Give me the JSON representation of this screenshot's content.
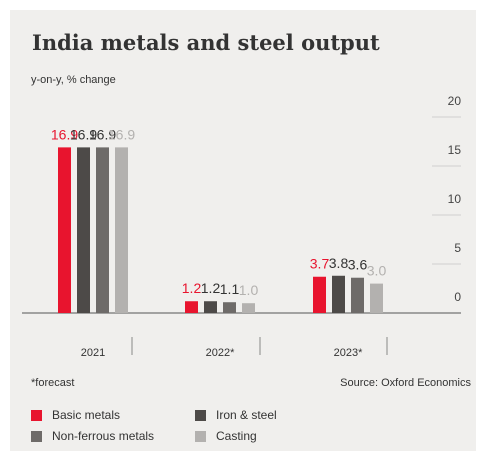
{
  "title": "India metals and steel output",
  "subtitle": "y-on-y, % change",
  "footnote": "*forecast",
  "source": "Source: Oxford Economics",
  "colors": {
    "background": "#f0efed",
    "axis": "#555555",
    "grid": "#cfcfcf",
    "text": "#333333",
    "tick_text": "#444444"
  },
  "chart_data": {
    "type": "bar",
    "title": "India metals and steel output",
    "subtitle": "y-on-y, % change",
    "categories": [
      "2021",
      "2022*",
      "2023*"
    ],
    "ylim": [
      0,
      20
    ],
    "yticks": [
      0,
      5,
      10,
      15,
      20
    ],
    "y_axis_position": "right",
    "grid": true,
    "legend_position": "bottom",
    "series": [
      {
        "name": "Basic metals",
        "color": "#e8142e",
        "values": [
          16.9,
          1.2,
          3.7
        ],
        "labels": [
          "16.9",
          "1.2",
          "3.7"
        ]
      },
      {
        "name": "Iron & steel",
        "color": "#4d4a48",
        "values": [
          16.9,
          1.2,
          3.8
        ],
        "labels": [
          "16.9",
          "1.2",
          "3.8"
        ]
      },
      {
        "name": "Non-ferrous metals",
        "color": "#6e6b69",
        "values": [
          16.9,
          1.1,
          3.6
        ],
        "labels": [
          "16.9",
          "1.1",
          "3.6"
        ]
      },
      {
        "name": "Casting",
        "color": "#b3b1af",
        "values": [
          16.9,
          1.0,
          3.0
        ],
        "labels": [
          "16.9",
          "1.0",
          "3.0"
        ]
      }
    ]
  }
}
